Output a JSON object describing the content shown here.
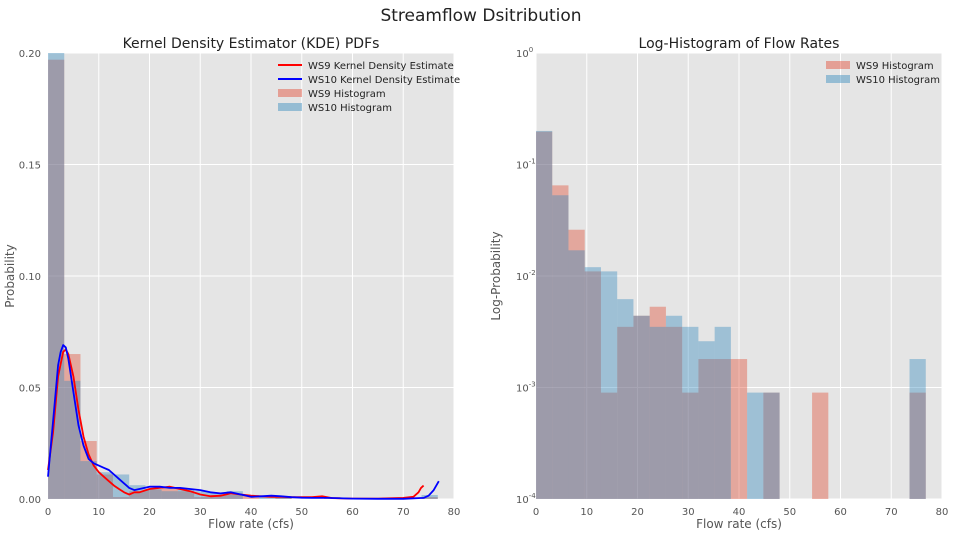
{
  "figure": {
    "suptitle": "Streamflow Dsitribution",
    "colors": {
      "ws9": "#e24a33",
      "ws10": "#348abd",
      "ws9_line": "#ff0000",
      "ws10_line": "#0000ff",
      "plot_bg": "#e5e5e5",
      "grid": "#ffffff"
    }
  },
  "chart_data": [
    {
      "type": "bar",
      "title": "Kernel Density Estimator (KDE) PDFs",
      "xlabel": "Flow rate (cfs)",
      "ylabel": "Probability",
      "xlim": [
        0,
        80
      ],
      "ylim": [
        0,
        0.2
      ],
      "xticks": [
        "0",
        "10",
        "20",
        "30",
        "40",
        "50",
        "60",
        "70",
        "80"
      ],
      "yticks": [
        "0.00",
        "0.05",
        "0.10",
        "0.15",
        "0.20"
      ],
      "grid": true,
      "legend_position": "top-right",
      "legend": [
        "WS9 Kernel Density Estimate",
        "WS10 Kernel Density Estimate",
        "WS9 Histogram",
        "WS10 Histogram"
      ],
      "hist_bin_edges": [
        0,
        3.2,
        6.4,
        9.6,
        12.8,
        16,
        19.2,
        22.4,
        25.6,
        28.8,
        32,
        35.2,
        38.4,
        41.6,
        44.8,
        48,
        51.2,
        54.4,
        57.6,
        60.8,
        64,
        67.2,
        70.4,
        73.6,
        76.8
      ],
      "series": [
        {
          "name": "WS9 Histogram",
          "kind": "hist",
          "values": [
            0.197,
            0.065,
            0.026,
            0.011,
            0.0009,
            0.0035,
            0.0044,
            0.0053,
            0.0035,
            0.0009,
            0.0018,
            0.0018,
            0.0018,
            0,
            0.0009,
            0,
            0,
            0.0009,
            0,
            0,
            0,
            0,
            0,
            0.0009
          ]
        },
        {
          "name": "WS10 Histogram",
          "kind": "hist",
          "values": [
            0.2,
            0.053,
            0.017,
            0.012,
            0.011,
            0.0062,
            0.0044,
            0.0035,
            0.0044,
            0.0035,
            0.0026,
            0.0035,
            0,
            0.0009,
            0.0009,
            0,
            0,
            0,
            0,
            0,
            0,
            0,
            0,
            0.0018
          ]
        },
        {
          "name": "WS9 Kernel Density Estimate",
          "kind": "line",
          "x": [
            0,
            1,
            2,
            3,
            3.5,
            4,
            5,
            6,
            7,
            8,
            9,
            10,
            11,
            12,
            13,
            14,
            15,
            16,
            17,
            18,
            20,
            22,
            24,
            26,
            28,
            30,
            32,
            34,
            36,
            38,
            40,
            42,
            44,
            46,
            48,
            50,
            52,
            54,
            56,
            60,
            65,
            70,
            72,
            73,
            73.5,
            74
          ],
          "y": [
            0.013,
            0.03,
            0.055,
            0.066,
            0.067,
            0.065,
            0.055,
            0.04,
            0.028,
            0.02,
            0.015,
            0.012,
            0.01,
            0.008,
            0.006,
            0.0045,
            0.003,
            0.002,
            0.003,
            0.003,
            0.0045,
            0.005,
            0.0055,
            0.0045,
            0.0035,
            0.002,
            0.0012,
            0.0015,
            0.0025,
            0.002,
            0.0015,
            0.0012,
            0.001,
            0.001,
            0.0008,
            0.0008,
            0.0008,
            0.0012,
            0.0004,
            0.0002,
            0.0002,
            0.0005,
            0.001,
            0.003,
            0.005,
            0.006
          ]
        },
        {
          "name": "WS10 Kernel Density Estimate",
          "kind": "line",
          "x": [
            0,
            1,
            2,
            2.5,
            3,
            3.5,
            4,
            5,
            6,
            7,
            8,
            9,
            10,
            11,
            12,
            13,
            14,
            15,
            16,
            17,
            18,
            20,
            22,
            24,
            26,
            28,
            30,
            32,
            34,
            36,
            38,
            40,
            42,
            44,
            46,
            48,
            50,
            52,
            55,
            60,
            65,
            70,
            74,
            75,
            76,
            77
          ],
          "y": [
            0.01,
            0.035,
            0.06,
            0.066,
            0.069,
            0.068,
            0.063,
            0.048,
            0.033,
            0.024,
            0.018,
            0.016,
            0.015,
            0.014,
            0.013,
            0.011,
            0.009,
            0.007,
            0.005,
            0.004,
            0.0045,
            0.0055,
            0.0055,
            0.005,
            0.005,
            0.0045,
            0.004,
            0.003,
            0.0025,
            0.003,
            0.002,
            0.001,
            0.0012,
            0.0015,
            0.0012,
            0.0008,
            0.0006,
            0.0005,
            0.0005,
            0.0002,
            0.0001,
            0.0001,
            0.0005,
            0.0015,
            0.004,
            0.008
          ]
        }
      ]
    },
    {
      "type": "bar",
      "title": "Log-Histogram of Flow Rates",
      "xlabel": "Flow rate (cfs)",
      "ylabel": "Log-Probability",
      "yscale": "log",
      "xlim": [
        0,
        80
      ],
      "ylim": [
        0.0001,
        1
      ],
      "xticks": [
        "0",
        "10",
        "20",
        "30",
        "40",
        "50",
        "60",
        "70",
        "80"
      ],
      "yticks": [
        {
          "base": "10",
          "exp": "-4"
        },
        {
          "base": "10",
          "exp": "-3"
        },
        {
          "base": "10",
          "exp": "-2"
        },
        {
          "base": "10",
          "exp": "-1"
        },
        {
          "base": "10",
          "exp": "0"
        }
      ],
      "grid": true,
      "legend_position": "top-right",
      "legend": [
        "WS9 Histogram",
        "WS10 Histogram"
      ],
      "hist_bin_edges": [
        0,
        3.2,
        6.4,
        9.6,
        12.8,
        16,
        19.2,
        22.4,
        25.6,
        28.8,
        32,
        35.2,
        38.4,
        41.6,
        44.8,
        48,
        51.2,
        54.4,
        57.6,
        60.8,
        64,
        67.2,
        70.4,
        73.6,
        76.8
      ],
      "series": [
        {
          "name": "WS9 Histogram",
          "kind": "hist",
          "values": [
            0.197,
            0.065,
            0.026,
            0.011,
            0.0009,
            0.0035,
            0.0044,
            0.0053,
            0.0035,
            0.0009,
            0.0018,
            0.0018,
            0.0018,
            0,
            0.0009,
            0,
            0,
            0.0009,
            0,
            0,
            0,
            0,
            0,
            0.0009
          ]
        },
        {
          "name": "WS10 Histogram",
          "kind": "hist",
          "values": [
            0.2,
            0.053,
            0.017,
            0.012,
            0.011,
            0.0062,
            0.0044,
            0.0035,
            0.0044,
            0.0035,
            0.0026,
            0.0035,
            0,
            0.0009,
            0.0009,
            0,
            0,
            0,
            0,
            0,
            0,
            0,
            0,
            0.0018
          ]
        }
      ]
    }
  ]
}
